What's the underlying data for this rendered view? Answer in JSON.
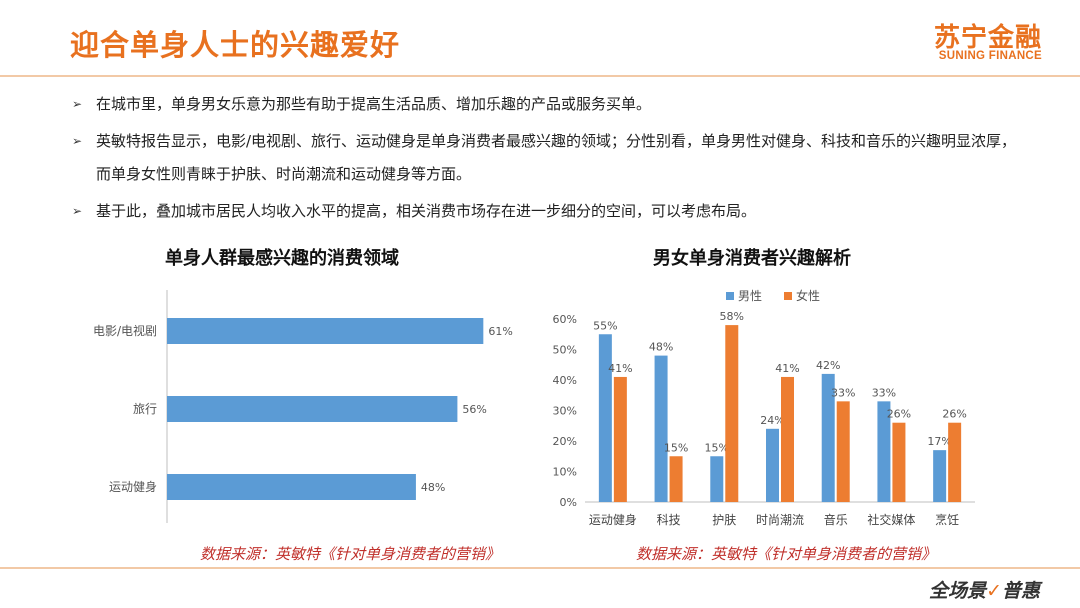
{
  "header": {
    "title": "迎合单身人士的兴趣爱好"
  },
  "logo": {
    "cn": "苏宁金融",
    "en": "SUNING FINANCE"
  },
  "bullets": [
    "在城市里，单身男女乐意为那些有助于提高生活品质、增加乐趣的产品或服务买单。",
    "英敏特报告显示，电影/电视剧、旅行、运动健身是单身消费者最感兴趣的领域；分性别看，单身男性对健身、科技和音乐的兴趣明显浓厚，而单身女性则青睐于护肤、时尚潮流和运动健身等方面。",
    "基于此，叠加城市居民人均收入水平的提高，相关消费市场存在进一步细分的空间，可以考虑布局。"
  ],
  "chart_data": [
    {
      "type": "bar",
      "orientation": "horizontal",
      "title": "单身人群最感兴趣的消费领域",
      "categories": [
        "电影/电视剧",
        "旅行",
        "运动健身"
      ],
      "values": [
        61,
        56,
        48
      ],
      "value_labels": [
        "61%",
        "56%",
        "48%"
      ],
      "xlim": [
        0,
        70
      ],
      "color": "#5B9BD5"
    },
    {
      "type": "bar",
      "title": "男女单身消费者兴趣解析",
      "categories": [
        "运动健身",
        "科技",
        "护肤",
        "时尚潮流",
        "音乐",
        "社交媒体",
        "烹饪"
      ],
      "series": [
        {
          "name": "男性",
          "values": [
            55,
            48,
            15,
            24,
            42,
            33,
            17
          ],
          "labels": [
            "55%",
            "48%",
            "15%",
            "24%",
            "42%",
            "33%",
            "17%"
          ],
          "color": "#5B9BD5"
        },
        {
          "name": "女性",
          "values": [
            41,
            15,
            58,
            41,
            33,
            26,
            26
          ],
          "labels": [
            "41%",
            "15%",
            "58%",
            "41%",
            "33%",
            "26%",
            "26%"
          ],
          "color": "#ED7D31"
        }
      ],
      "yticks": [
        "0%",
        "10%",
        "20%",
        "30%",
        "40%",
        "50%",
        "60%"
      ],
      "ylim": [
        0,
        60
      ],
      "legend": "top"
    }
  ],
  "sources": {
    "left": "数据来源：英敏特《针对单身消费者的营销》",
    "right": "数据来源：英敏特《针对单身消费者的营销》"
  },
  "footer": {
    "brand": "全场景",
    "brand_mark": "✓",
    "brand_tail": "普惠"
  }
}
